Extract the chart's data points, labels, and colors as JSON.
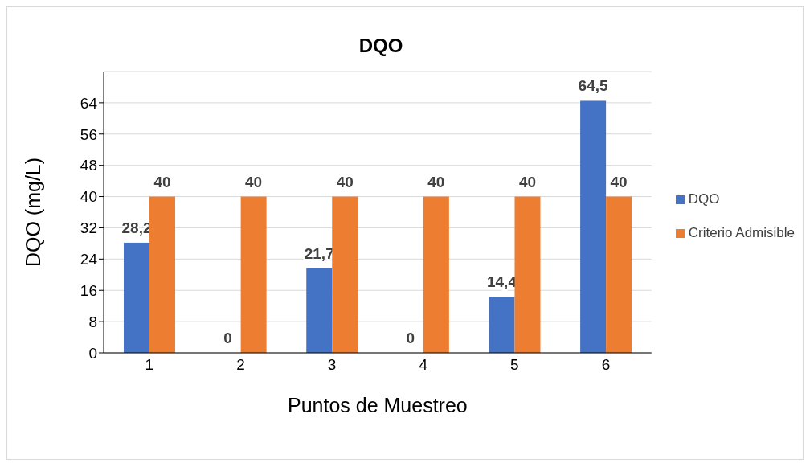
{
  "chart_data": {
    "type": "bar",
    "title": "DQO",
    "xlabel": "Puntos de Muestreo",
    "ylabel": "DQO (mg/L)",
    "categories": [
      "1",
      "2",
      "3",
      "4",
      "5",
      "6"
    ],
    "series": [
      {
        "name": "DQO",
        "color": "#4472c4",
        "values": [
          28.2,
          0,
          21.7,
          0,
          14.4,
          64.5
        ],
        "value_labels": [
          "28,2",
          "0",
          "21,7",
          "0",
          "14,4",
          "64,5"
        ]
      },
      {
        "name": "Criterio Admisible",
        "color": "#ed7d31",
        "values": [
          40,
          40,
          40,
          40,
          40,
          40
        ],
        "value_labels": [
          "40",
          "40",
          "40",
          "40",
          "40",
          "40"
        ]
      }
    ],
    "ylim": [
      0,
      72
    ],
    "yticks": [
      0,
      8,
      16,
      24,
      32,
      40,
      48,
      56,
      64
    ],
    "grid": "y",
    "legend": "right"
  }
}
